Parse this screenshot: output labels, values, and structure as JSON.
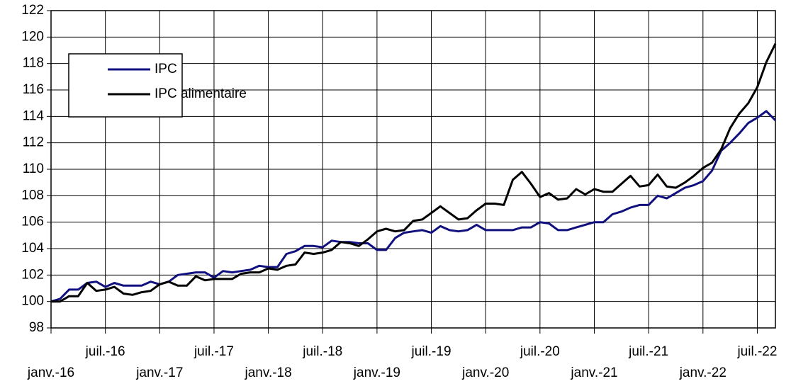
{
  "chart_data": {
    "type": "line",
    "categories": [
      "janv.-16",
      null,
      null,
      null,
      null,
      null,
      "juil.-16",
      null,
      null,
      null,
      null,
      null,
      "janv.-17",
      null,
      null,
      null,
      null,
      null,
      "juil.-17",
      null,
      null,
      null,
      null,
      null,
      "janv.-18",
      null,
      null,
      null,
      null,
      null,
      "juil.-18",
      null,
      null,
      null,
      null,
      null,
      "janv.-19",
      null,
      null,
      null,
      null,
      null,
      "juil.-19",
      null,
      null,
      null,
      null,
      null,
      "janv.-20",
      null,
      null,
      null,
      null,
      null,
      "juil.-20",
      null,
      null,
      null,
      null,
      null,
      "janv.-21",
      null,
      null,
      null,
      null,
      null,
      "juil.-21",
      null,
      null,
      null,
      null,
      null,
      "janv.-22",
      null,
      null,
      null,
      null,
      null,
      "juil.-22",
      null,
      null
    ],
    "series": [
      {
        "name": "IPC",
        "color": "#10107f",
        "values": [
          100.0,
          100.2,
          100.9,
          100.9,
          101.4,
          101.5,
          101.1,
          101.4,
          101.2,
          101.2,
          101.2,
          101.5,
          101.3,
          101.5,
          102.0,
          102.1,
          102.2,
          102.2,
          101.8,
          102.3,
          102.2,
          102.3,
          102.4,
          102.7,
          102.6,
          102.6,
          103.6,
          103.8,
          104.2,
          104.2,
          104.1,
          104.6,
          104.5,
          104.5,
          104.4,
          104.4,
          103.9,
          103.9,
          104.8,
          105.2,
          105.3,
          105.4,
          105.2,
          105.7,
          105.4,
          105.3,
          105.4,
          105.8,
          105.4,
          105.4,
          105.4,
          105.4,
          105.6,
          105.6,
          106.0,
          105.9,
          105.4,
          105.4,
          105.6,
          105.8,
          106.0,
          106.0,
          106.6,
          106.8,
          107.1,
          107.3,
          107.3,
          108.0,
          107.8,
          108.2,
          108.6,
          108.8,
          109.1,
          109.9,
          111.4,
          112.0,
          112.7,
          113.5,
          113.9,
          114.4,
          113.7
        ]
      },
      {
        "name": "IPC alimentaire",
        "color": "#000000",
        "values": [
          100.0,
          100.0,
          100.4,
          100.4,
          101.4,
          100.8,
          100.9,
          101.1,
          100.6,
          100.5,
          100.7,
          100.8,
          101.3,
          101.5,
          101.2,
          101.2,
          101.9,
          101.6,
          101.7,
          101.7,
          101.7,
          102.1,
          102.2,
          102.2,
          102.5,
          102.4,
          102.7,
          102.8,
          103.7,
          103.6,
          103.7,
          103.9,
          104.5,
          104.4,
          104.2,
          104.7,
          105.3,
          105.5,
          105.3,
          105.4,
          106.1,
          106.2,
          106.7,
          107.2,
          106.7,
          106.2,
          106.3,
          106.9,
          107.4,
          107.4,
          107.3,
          109.2,
          109.8,
          108.9,
          107.9,
          108.2,
          107.7,
          107.8,
          108.5,
          108.1,
          108.5,
          108.3,
          108.3,
          108.9,
          109.5,
          108.7,
          108.8,
          109.6,
          108.7,
          108.6,
          109.0,
          109.5,
          110.1,
          110.5,
          111.5,
          113.1,
          114.2,
          115.0,
          116.2,
          118.1,
          119.5
        ]
      }
    ],
    "ylim": [
      98,
      122
    ],
    "yticks": [
      98,
      100,
      102,
      104,
      106,
      108,
      110,
      112,
      114,
      116,
      118,
      120,
      122
    ],
    "grid": true
  }
}
